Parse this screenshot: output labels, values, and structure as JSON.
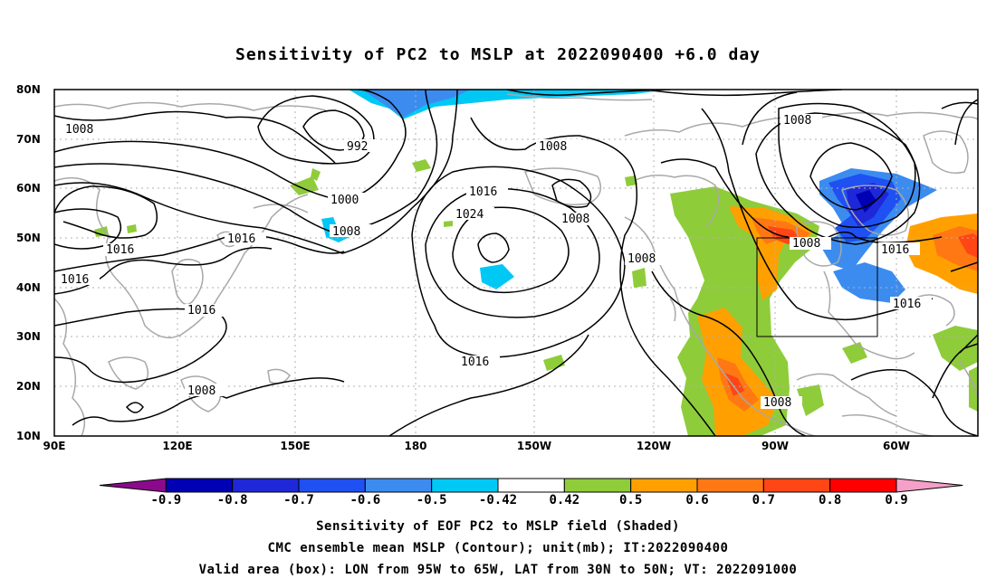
{
  "title": "Sensitivity of PC2 to MSLP at 2022090400 +6.0 day",
  "lat_labels": [
    "80N",
    "70N",
    "60N",
    "50N",
    "40N",
    "30N",
    "20N",
    "10N"
  ],
  "lon_labels": [
    "90E",
    "120E",
    "150E",
    "180",
    "150W",
    "120W",
    "90W",
    "60W"
  ],
  "contour_labels": [
    "1008",
    "992",
    "1008",
    "1016",
    "1008",
    "1000",
    "1008",
    "1024",
    "1008",
    "1016",
    "1016",
    "1008",
    "1008",
    "1016",
    "1016",
    "1016",
    "1016",
    "1008",
    "1008",
    "1016"
  ],
  "colorbar": {
    "labels": [
      "-0.9",
      "-0.8",
      "-0.7",
      "-0.6",
      "-0.5",
      "-0.42",
      "0.42",
      "0.5",
      "0.6",
      "0.7",
      "0.8",
      "0.9"
    ],
    "colors": [
      "#8b0a8b",
      "#0000b4",
      "#1e28d8",
      "#1f50f2",
      "#3c8cf0",
      "#00c8f5",
      "#ffffff",
      "#8fcc3a",
      "#ffa000",
      "#ff7814",
      "#ff4614",
      "#ff0000",
      "#f5a0c8"
    ]
  },
  "valid_box": {
    "lon_from": "95W",
    "lon_to": "65W",
    "lat_from": "30N",
    "lat_to": "50N"
  },
  "captions": [
    "Sensitivity of EOF PC2 to MSLP field (Shaded)",
    "CMC ensemble mean MSLP (Contour); unit(mb); IT:2022090400",
    "Valid area (box): LON from 95W to 65W, LAT from 30N to 50N; VT: 2022091000"
  ]
}
